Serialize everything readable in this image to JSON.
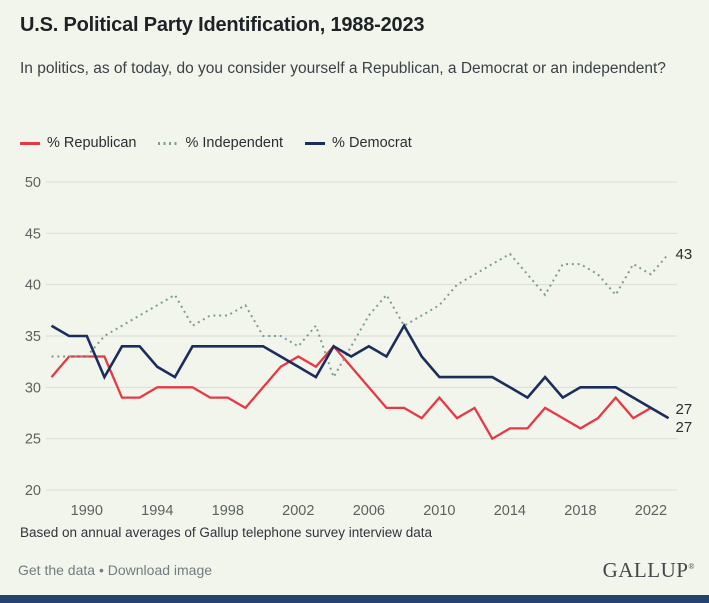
{
  "header": {
    "title": "U.S. Political Party Identification, 1988-2023",
    "subtitle": "In politics, as of today, do you consider yourself a Republican, a Democrat or an independent?"
  },
  "legend": {
    "items": [
      {
        "label": "% Republican"
      },
      {
        "label": "% Independent"
      },
      {
        "label": "% Democrat"
      }
    ]
  },
  "chart_data": {
    "type": "line",
    "title": "U.S. Political Party Identification, 1988-2023",
    "x": [
      1988,
      1989,
      1990,
      1991,
      1992,
      1993,
      1994,
      1995,
      1996,
      1997,
      1998,
      1999,
      2000,
      2001,
      2002,
      2003,
      2004,
      2005,
      2006,
      2007,
      2008,
      2009,
      2010,
      2011,
      2012,
      2013,
      2014,
      2015,
      2016,
      2017,
      2018,
      2019,
      2020,
      2021,
      2022,
      2023
    ],
    "series": [
      {
        "name": "% Republican",
        "color": "#e73945",
        "style": "solid",
        "end_label": "27",
        "values": [
          31,
          33,
          33,
          33,
          29,
          29,
          30,
          30,
          30,
          29,
          29,
          28,
          30,
          32,
          33,
          32,
          34,
          32,
          30,
          28,
          28,
          27,
          29,
          27,
          28,
          25,
          26,
          26,
          28,
          27,
          26,
          27,
          29,
          27,
          28,
          27
        ]
      },
      {
        "name": "% Independent",
        "color": "#7f9c94",
        "style": "dotted",
        "end_label": "43",
        "values": [
          33,
          33,
          33,
          35,
          36,
          37,
          38,
          39,
          36,
          37,
          37,
          38,
          35,
          35,
          34,
          36,
          31,
          34,
          37,
          39,
          36,
          37,
          38,
          40,
          41,
          42,
          43,
          41,
          39,
          42,
          42,
          41,
          39,
          42,
          41,
          43
        ]
      },
      {
        "name": "% Democrat",
        "color": "#1b2d5c",
        "style": "solid",
        "end_label": "27",
        "values": [
          36,
          35,
          35,
          31,
          34,
          34,
          32,
          31,
          34,
          34,
          34,
          34,
          34,
          33,
          32,
          31,
          34,
          33,
          34,
          33,
          36,
          33,
          31,
          31,
          31,
          31,
          30,
          29,
          31,
          29,
          30,
          30,
          30,
          29,
          28,
          27
        ]
      }
    ],
    "ylim": [
      20,
      50
    ],
    "yticks": [
      20,
      25,
      30,
      35,
      40,
      45,
      50
    ],
    "xticks": [
      1990,
      1994,
      1998,
      2002,
      2006,
      2010,
      2014,
      2018,
      2022
    ],
    "grid": true,
    "legend_position": "top",
    "colors": {
      "grid": "#d8ddd2",
      "tick_text": "#5a635f",
      "end_label_text": "#2a2e31"
    }
  },
  "footer": {
    "note": "Based on annual averages of Gallup telephone survey interview data",
    "get_data_label": "Get the data",
    "separator": "•",
    "download_label": "Download image",
    "logo_text": "GALLUP",
    "logo_mark": "®"
  }
}
